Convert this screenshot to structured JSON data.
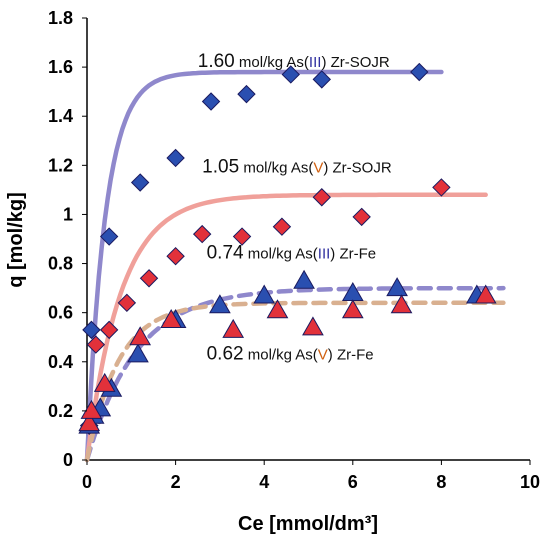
{
  "chart_data": {
    "type": "scatter",
    "xlabel": "Ce [mmol/dm³]",
    "ylabel": "q [mol/kg]",
    "xlim": [
      0,
      10
    ],
    "ylim": [
      0,
      1.8
    ],
    "xticks": [
      "0",
      "2",
      "4",
      "6",
      "8",
      "10"
    ],
    "yticks": [
      "0",
      "0.2",
      "0.4",
      "0.6",
      "0.8",
      "1",
      "1.2",
      "1.4",
      "1.6",
      "1.8"
    ],
    "grid": false,
    "series": [
      {
        "marker": "diamond",
        "color": "#2a4fb0",
        "x": [
          0.05,
          0.1,
          0.5,
          1.2,
          2.0,
          2.8,
          3.6,
          4.6,
          5.3,
          7.5
        ],
        "y": [
          0.14,
          0.53,
          0.91,
          1.13,
          1.23,
          1.46,
          1.49,
          1.57,
          1.55,
          1.58
        ],
        "fit": {
          "qmax": 1.58,
          "k": 2.4,
          "color": "#8f88cc",
          "style": "solid",
          "x_end": 8.0
        },
        "annotation": {
          "value": "1.60",
          "unit": " mol/kg As(",
          "species": "III",
          "species_color": "#3030a0",
          "rest": ") Zr-SOJR",
          "x": 2.5,
          "y": 1.6
        }
      },
      {
        "marker": "diamond",
        "color": "#e2313a",
        "x": [
          0.05,
          0.2,
          0.5,
          0.9,
          1.4,
          2.0,
          2.6,
          3.5,
          4.4,
          5.3,
          6.2,
          8.0
        ],
        "y": [
          0.14,
          0.47,
          0.53,
          0.64,
          0.74,
          0.83,
          0.92,
          0.91,
          0.95,
          1.07,
          0.99,
          1.11
        ],
        "fit": {
          "qmax": 1.08,
          "k": 1.3,
          "color": "#f0a09a",
          "style": "solid",
          "x_end": 9.0
        },
        "annotation": {
          "value": "1.05",
          "unit": " mol/kg As(",
          "species": "V",
          "species_color": "#d06010",
          "rest": ") Zr-SOJR",
          "x": 2.6,
          "y": 1.17
        }
      },
      {
        "marker": "triangle",
        "color": "#2a4fb0",
        "x": [
          0.05,
          0.15,
          0.3,
          0.55,
          1.15,
          2.0,
          3.0,
          4.0,
          4.9,
          6.0,
          7.0,
          8.8
        ],
        "y": [
          0.14,
          0.18,
          0.21,
          0.29,
          0.43,
          0.57,
          0.63,
          0.67,
          0.73,
          0.68,
          0.7,
          0.67
        ],
        "fit": {
          "qmax": 0.7,
          "k": 0.9,
          "color": "#8f88cc",
          "style": "dashed",
          "x_end": 9.4
        },
        "annotation": {
          "value": "0.74",
          "unit": " mol/kg As(",
          "species": "III",
          "species_color": "#3030a0",
          "rest": ") Zr-Fe",
          "x": 2.7,
          "y": 0.82
        }
      },
      {
        "marker": "triangle",
        "color": "#e2313a",
        "x": [
          0.05,
          0.1,
          0.4,
          1.2,
          1.9,
          3.3,
          4.3,
          5.1,
          6.0,
          7.1,
          9.0
        ],
        "y": [
          0.15,
          0.2,
          0.31,
          0.5,
          0.57,
          0.53,
          0.61,
          0.54,
          0.61,
          0.63,
          0.67
        ],
        "fit": {
          "qmax": 0.64,
          "k": 1.4,
          "color": "#d9b090",
          "style": "dashed",
          "x_end": 9.4
        },
        "annotation": {
          "value": "0.62",
          "unit": " mol/kg As(",
          "species": "V",
          "species_color": "#d06010",
          "rest": ") Zr-Fe",
          "x": 2.7,
          "y": 0.41
        }
      }
    ]
  }
}
